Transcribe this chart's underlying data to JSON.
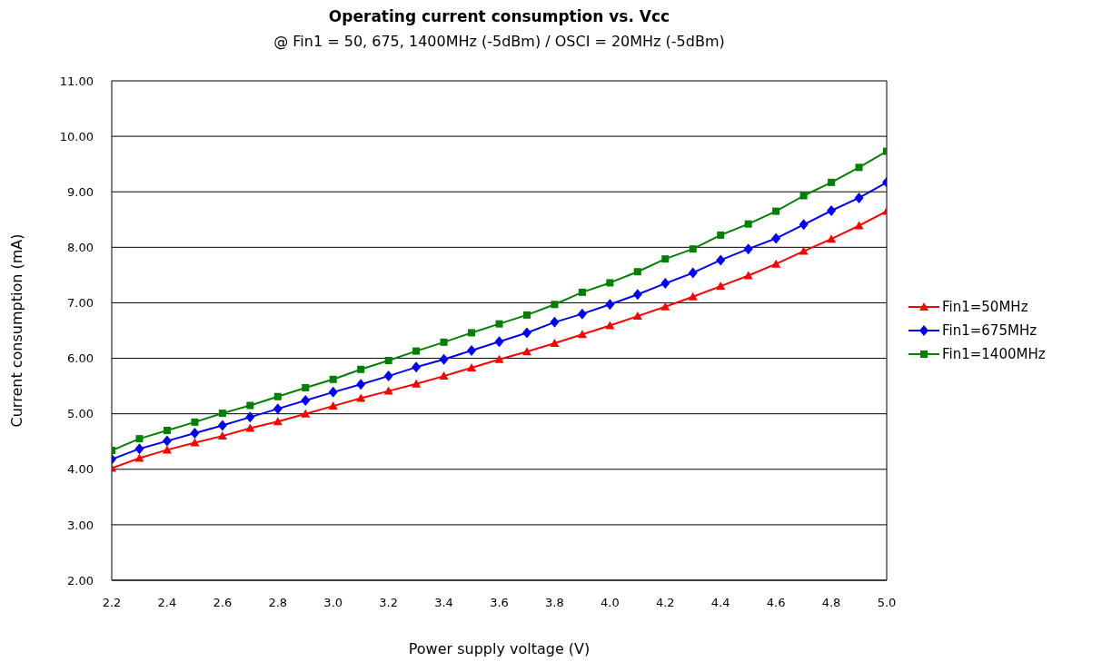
{
  "chart_data": {
    "type": "line",
    "title": "Operating current consumption vs. Vcc",
    "subtitle": "@ Fin1 = 50, 675, 1400MHz (-5dBm) / OSCI = 20MHz (-5dBm)",
    "xlabel": "Power supply voltage (V)",
    "ylabel": "Current consumption (mA)",
    "x": [
      2.2,
      2.3,
      2.4,
      2.5,
      2.6,
      2.7,
      2.8,
      2.9,
      3.0,
      3.1,
      3.2,
      3.3,
      3.4,
      3.5,
      3.6,
      3.7,
      3.8,
      3.9,
      4.0,
      4.1,
      4.2,
      4.3,
      4.4,
      4.5,
      4.6,
      4.7,
      4.8,
      4.9,
      5.0
    ],
    "series": [
      {
        "name": "Fin1=50MHz",
        "color": "#ff0000",
        "marker": "triangle",
        "values": [
          4.02,
          4.2,
          4.35,
          4.48,
          4.6,
          4.74,
          4.86,
          5.0,
          5.14,
          5.28,
          5.41,
          5.54,
          5.68,
          5.83,
          5.98,
          6.12,
          6.27,
          6.43,
          6.59,
          6.76,
          6.93,
          7.11,
          7.3,
          7.49,
          7.7,
          7.93,
          8.15,
          8.39,
          8.65
        ]
      },
      {
        "name": "Fin1=675MHz",
        "color": "#0000ff",
        "marker": "diamond",
        "values": [
          4.18,
          4.37,
          4.51,
          4.65,
          4.79,
          4.94,
          5.09,
          5.24,
          5.39,
          5.53,
          5.68,
          5.84,
          5.98,
          6.14,
          6.3,
          6.46,
          6.65,
          6.8,
          6.97,
          7.15,
          7.35,
          7.54,
          7.77,
          7.97,
          8.16,
          8.41,
          8.66,
          8.89,
          9.17
        ]
      },
      {
        "name": "Fin1=1400MHz",
        "color": "#008000",
        "marker": "square",
        "values": [
          4.34,
          4.55,
          4.7,
          4.85,
          5.01,
          5.15,
          5.31,
          5.47,
          5.62,
          5.8,
          5.96,
          6.13,
          6.29,
          6.46,
          6.62,
          6.78,
          6.97,
          7.19,
          7.36,
          7.56,
          7.79,
          7.97,
          8.22,
          8.42,
          8.65,
          8.93,
          9.17,
          9.44,
          9.73
        ]
      }
    ],
    "xlim": [
      2.2,
      5.0
    ],
    "xticks": [
      2.2,
      2.4,
      2.6,
      2.8,
      {
        "value": 3,
        "label": "3.0"
      },
      3.2,
      3.4,
      3.6,
      3.8,
      {
        "value": 4,
        "label": "4.0"
      },
      4.2,
      4.4,
      4.6,
      4.8,
      {
        "value": 5,
        "label": "5.0"
      }
    ],
    "ylim": [
      2,
      11
    ],
    "yticks": [
      {
        "value": 2,
        "label": "2.00"
      },
      {
        "value": 3,
        "label": "3.00"
      },
      {
        "value": 4,
        "label": "4.00"
      },
      {
        "value": 5,
        "label": "5.00"
      },
      {
        "value": 6,
        "label": "6.00"
      },
      {
        "value": 7,
        "label": "7.00"
      },
      {
        "value": 8,
        "label": "8.00"
      },
      {
        "value": 9,
        "label": "9.00"
      },
      {
        "value": 10,
        "label": "10.00"
      },
      {
        "value": 11,
        "label": "11.00"
      }
    ],
    "grid": "y",
    "legend": "right",
    "line_style": "solid"
  }
}
